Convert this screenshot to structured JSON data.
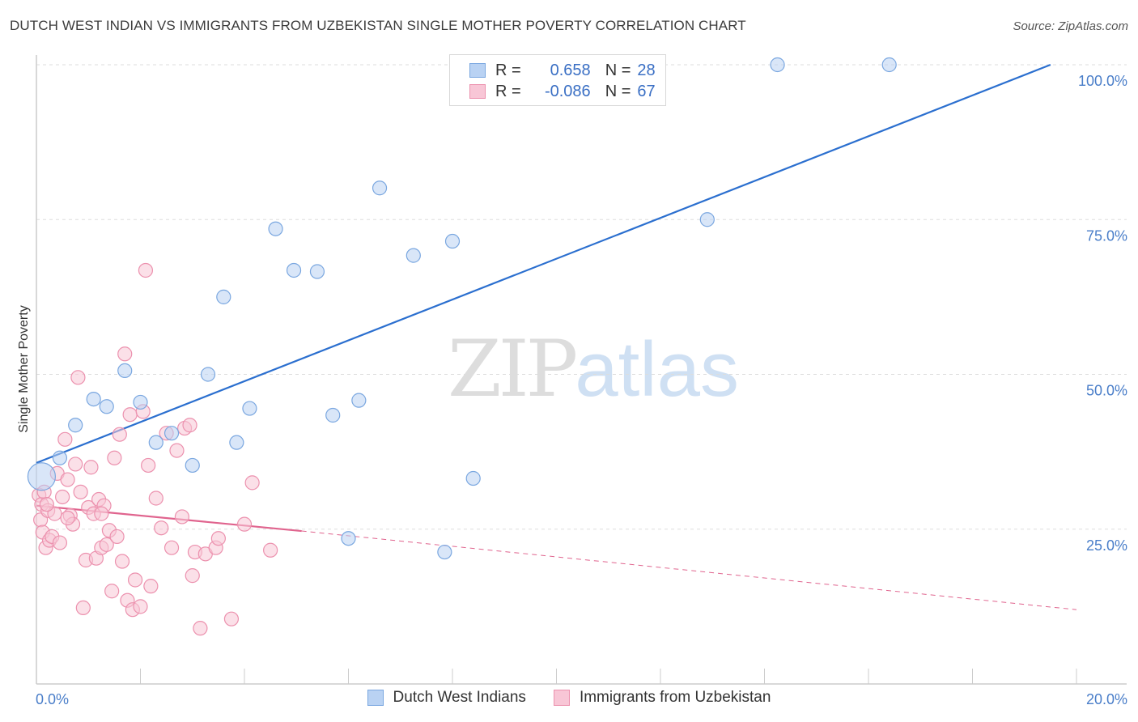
{
  "title": "DUTCH WEST INDIAN VS IMMIGRANTS FROM UZBEKISTAN SINGLE MOTHER POVERTY CORRELATION CHART",
  "source": "Source: ZipAtlas.com",
  "watermark": {
    "zip": "ZIP",
    "atlas": "atlas"
  },
  "legend": {
    "r_label": "R =",
    "n_label": "N =",
    "series1": {
      "r": "0.658",
      "n": "28"
    },
    "series2": {
      "r": "-0.086",
      "n": "67"
    }
  },
  "colors": {
    "blue_fill": "#b9d2f3",
    "blue_stroke": "#7aa7e0",
    "blue_line": "#2b6fcf",
    "pink_fill": "#f8c6d6",
    "pink_stroke": "#ec91ae",
    "pink_line": "#e0648e",
    "grid": "#dddddd",
    "tick_text": "#4a7ec9"
  },
  "chart_data": {
    "type": "scatter",
    "title": "DUTCH WEST INDIAN VS IMMIGRANTS FROM UZBEKISTAN SINGLE MOTHER POVERTY CORRELATION CHART",
    "xlabel": "",
    "ylabel": "Single Mother Poverty",
    "xlim": [
      0,
      20
    ],
    "ylim": [
      0,
      100
    ],
    "x_tick_labels": [
      "0.0%",
      "20.0%"
    ],
    "y_ticks": [
      25,
      50,
      75,
      100
    ],
    "y_tick_labels": [
      "25.0%",
      "50.0%",
      "75.0%",
      "100.0%"
    ],
    "grid": true,
    "legend_position": "top-center",
    "series": [
      {
        "name": "Dutch West Indians",
        "color": "#7aa7e0",
        "r": 0.658,
        "n": 28,
        "trend": {
          "x": [
            0,
            19.5
          ],
          "y": [
            35.7,
            100
          ]
        },
        "points": [
          {
            "x": 0.1,
            "y": 33.5,
            "big": true
          },
          {
            "x": 0.45,
            "y": 36.5
          },
          {
            "x": 0.75,
            "y": 41.8
          },
          {
            "x": 1.1,
            "y": 46.0
          },
          {
            "x": 1.35,
            "y": 44.8
          },
          {
            "x": 1.7,
            "y": 50.6
          },
          {
            "x": 2.0,
            "y": 45.5
          },
          {
            "x": 2.3,
            "y": 39.0
          },
          {
            "x": 2.6,
            "y": 40.5
          },
          {
            "x": 3.0,
            "y": 35.3
          },
          {
            "x": 3.3,
            "y": 50.0
          },
          {
            "x": 3.6,
            "y": 62.5
          },
          {
            "x": 3.85,
            "y": 39.0
          },
          {
            "x": 4.1,
            "y": 44.5
          },
          {
            "x": 4.6,
            "y": 73.5
          },
          {
            "x": 4.95,
            "y": 66.8
          },
          {
            "x": 5.4,
            "y": 66.6
          },
          {
            "x": 5.7,
            "y": 43.4
          },
          {
            "x": 6.0,
            "y": 23.5
          },
          {
            "x": 6.2,
            "y": 45.8
          },
          {
            "x": 6.6,
            "y": 80.1
          },
          {
            "x": 7.25,
            "y": 69.2
          },
          {
            "x": 7.85,
            "y": 21.3
          },
          {
            "x": 8.0,
            "y": 71.5
          },
          {
            "x": 8.4,
            "y": 33.2
          },
          {
            "x": 12.9,
            "y": 75.0
          },
          {
            "x": 14.25,
            "y": 100.0
          },
          {
            "x": 16.4,
            "y": 100.0
          }
        ]
      },
      {
        "name": "Immigrants from Uzbekistan",
        "color": "#ec91ae",
        "r": -0.086,
        "n": 67,
        "trend": {
          "x": [
            0,
            5.1
          ],
          "y": [
            28.8,
            24.7
          ]
        },
        "trend_dashed": {
          "x": [
            5.1,
            20
          ],
          "y": [
            24.7,
            12.0
          ]
        },
        "points": [
          {
            "x": 0.05,
            "y": 30.5
          },
          {
            "x": 0.08,
            "y": 26.5
          },
          {
            "x": 0.1,
            "y": 29.0
          },
          {
            "x": 0.12,
            "y": 24.5
          },
          {
            "x": 0.15,
            "y": 31.0
          },
          {
            "x": 0.18,
            "y": 22.0
          },
          {
            "x": 0.22,
            "y": 28.0
          },
          {
            "x": 0.25,
            "y": 23.2
          },
          {
            "x": 0.3,
            "y": 23.8
          },
          {
            "x": 0.35,
            "y": 27.5
          },
          {
            "x": 0.4,
            "y": 34.0
          },
          {
            "x": 0.45,
            "y": 22.8
          },
          {
            "x": 0.5,
            "y": 30.2
          },
          {
            "x": 0.55,
            "y": 39.5
          },
          {
            "x": 0.6,
            "y": 33.0
          },
          {
            "x": 0.65,
            "y": 27.2
          },
          {
            "x": 0.7,
            "y": 25.8
          },
          {
            "x": 0.75,
            "y": 35.5
          },
          {
            "x": 0.8,
            "y": 49.5
          },
          {
            "x": 0.85,
            "y": 31.0
          },
          {
            "x": 0.9,
            "y": 12.3
          },
          {
            "x": 0.95,
            "y": 20.0
          },
          {
            "x": 1.0,
            "y": 28.5
          },
          {
            "x": 1.05,
            "y": 35.0
          },
          {
            "x": 1.1,
            "y": 27.5
          },
          {
            "x": 1.15,
            "y": 20.3
          },
          {
            "x": 1.2,
            "y": 29.8
          },
          {
            "x": 1.25,
            "y": 22.0
          },
          {
            "x": 1.3,
            "y": 28.8
          },
          {
            "x": 1.35,
            "y": 22.5
          },
          {
            "x": 1.4,
            "y": 24.8
          },
          {
            "x": 1.45,
            "y": 15.0
          },
          {
            "x": 1.5,
            "y": 36.5
          },
          {
            "x": 1.55,
            "y": 23.8
          },
          {
            "x": 1.6,
            "y": 40.3
          },
          {
            "x": 1.65,
            "y": 19.8
          },
          {
            "x": 1.7,
            "y": 53.3
          },
          {
            "x": 1.75,
            "y": 13.5
          },
          {
            "x": 1.8,
            "y": 43.5
          },
          {
            "x": 1.85,
            "y": 12.0
          },
          {
            "x": 1.9,
            "y": 16.8
          },
          {
            "x": 2.0,
            "y": 12.5
          },
          {
            "x": 2.05,
            "y": 44.0
          },
          {
            "x": 2.1,
            "y": 66.8
          },
          {
            "x": 2.15,
            "y": 35.3
          },
          {
            "x": 2.2,
            "y": 15.8
          },
          {
            "x": 2.3,
            "y": 30.0
          },
          {
            "x": 2.4,
            "y": 25.2
          },
          {
            "x": 2.5,
            "y": 40.5
          },
          {
            "x": 2.6,
            "y": 22.0
          },
          {
            "x": 2.7,
            "y": 37.7
          },
          {
            "x": 2.8,
            "y": 27.0
          },
          {
            "x": 2.85,
            "y": 41.3
          },
          {
            "x": 2.95,
            "y": 41.8
          },
          {
            "x": 3.0,
            "y": 17.5
          },
          {
            "x": 3.05,
            "y": 21.3
          },
          {
            "x": 3.15,
            "y": 9.0
          },
          {
            "x": 3.25,
            "y": 21.0
          },
          {
            "x": 3.45,
            "y": 22.0
          },
          {
            "x": 3.5,
            "y": 23.5
          },
          {
            "x": 3.75,
            "y": 10.5
          },
          {
            "x": 4.0,
            "y": 25.8
          },
          {
            "x": 4.15,
            "y": 32.5
          },
          {
            "x": 4.5,
            "y": 21.6
          },
          {
            "x": 0.2,
            "y": 29.0
          },
          {
            "x": 0.6,
            "y": 26.8
          },
          {
            "x": 1.25,
            "y": 27.5
          }
        ]
      }
    ]
  }
}
